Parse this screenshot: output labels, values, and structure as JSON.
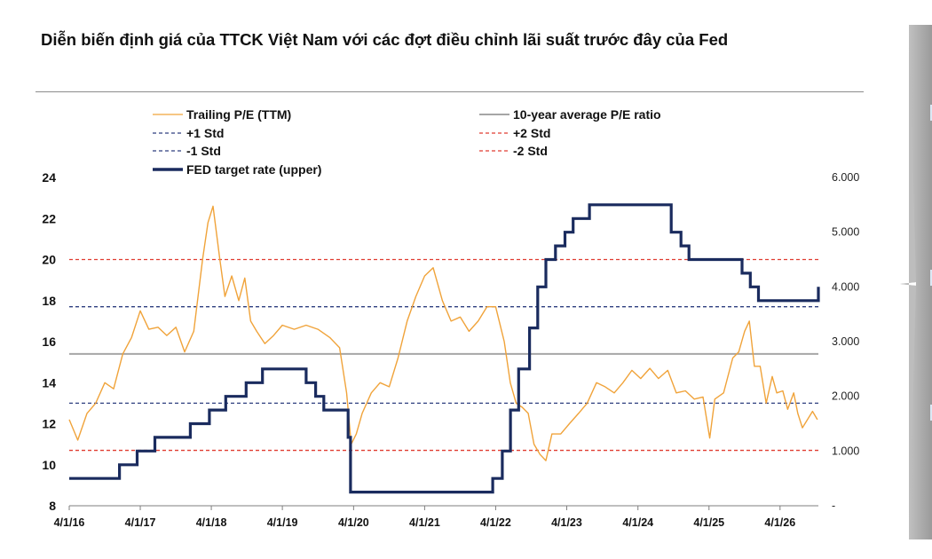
{
  "title": "Diễn biến định giá của TTCK Việt Nam với các đợt điều chỉnh lãi suất trước đây của Fed",
  "chart_data": {
    "type": "line",
    "title": "Diễn biến định giá của TTCK Việt Nam với các đợt điều chỉnh lãi suất trước đây của Fed",
    "x_tick_labels": [
      "4/1/16",
      "4/1/17",
      "4/1/18",
      "4/1/19",
      "4/1/20",
      "4/1/21",
      "4/1/22",
      "4/1/23",
      "4/1/24",
      "4/1/25",
      "4/1/26"
    ],
    "x_range": [
      "2016-04-01",
      "2026-10-15"
    ],
    "y_left": {
      "ticks": [
        "8",
        "10",
        "12",
        "14",
        "16",
        "18",
        "20",
        "22",
        "24"
      ],
      "range": [
        8,
        24
      ]
    },
    "y_right": {
      "ticks": [
        "-",
        "1.000",
        "2.000",
        "3.000",
        "4.000",
        "5.000",
        "6.000"
      ],
      "range": [
        0,
        6
      ]
    },
    "grid": false,
    "legend_position": "top",
    "legend": [
      {
        "label": "Trailing P/E (TTM)",
        "style": "solid-thin",
        "color": "#f0a33a"
      },
      {
        "label": "10-year average P/E ratio",
        "style": "solid",
        "color": "#a6a6a6"
      },
      {
        "label": "+1 Std",
        "style": "dashed",
        "color": "#2e3f7f"
      },
      {
        "label": "+2 Std",
        "style": "dashed",
        "color": "#e03c31"
      },
      {
        "label": "-1 Std",
        "style": "dashed",
        "color": "#2e3f7f"
      },
      {
        "label": "-2 Std",
        "style": "dashed",
        "color": "#e03c31"
      },
      {
        "label": "FED target rate (upper)",
        "style": "solid-thick",
        "color": "#1a2b5e"
      }
    ],
    "reference_lines": {
      "avg": 15.4,
      "plus1": 17.7,
      "minus1": 13.0,
      "plus2": 20.0,
      "minus2": 10.7
    },
    "series": [
      {
        "name": "Trailing P/E (TTM)",
        "axis": "left",
        "color": "#f0a33a",
        "points": [
          [
            "2016-04-01",
            12.2
          ],
          [
            "2016-05-15",
            11.2
          ],
          [
            "2016-07-01",
            12.5
          ],
          [
            "2016-08-15",
            13.0
          ],
          [
            "2016-10-01",
            14.0
          ],
          [
            "2016-11-15",
            13.7
          ],
          [
            "2017-01-01",
            15.4
          ],
          [
            "2017-02-15",
            16.2
          ],
          [
            "2017-04-01",
            17.5
          ],
          [
            "2017-05-15",
            16.6
          ],
          [
            "2017-07-01",
            16.7
          ],
          [
            "2017-08-15",
            16.3
          ],
          [
            "2017-10-01",
            16.7
          ],
          [
            "2017-11-15",
            15.5
          ],
          [
            "2018-01-01",
            16.5
          ],
          [
            "2018-02-15",
            20.0
          ],
          [
            "2018-03-15",
            21.8
          ],
          [
            "2018-04-10",
            22.6
          ],
          [
            "2018-05-15",
            20.0
          ],
          [
            "2018-06-10",
            18.2
          ],
          [
            "2018-07-15",
            19.2
          ],
          [
            "2018-08-20",
            18.0
          ],
          [
            "2018-09-20",
            19.1
          ],
          [
            "2018-10-20",
            17.0
          ],
          [
            "2018-11-20",
            16.5
          ],
          [
            "2019-01-01",
            15.9
          ],
          [
            "2019-02-15",
            16.3
          ],
          [
            "2019-04-01",
            16.8
          ],
          [
            "2019-06-01",
            16.6
          ],
          [
            "2019-08-01",
            16.8
          ],
          [
            "2019-10-01",
            16.6
          ],
          [
            "2019-12-01",
            16.2
          ],
          [
            "2020-01-20",
            15.7
          ],
          [
            "2020-02-25",
            13.5
          ],
          [
            "2020-03-20",
            11.0
          ],
          [
            "2020-04-15",
            11.5
          ],
          [
            "2020-05-15",
            12.5
          ],
          [
            "2020-07-01",
            13.5
          ],
          [
            "2020-08-15",
            14.0
          ],
          [
            "2020-10-01",
            13.8
          ],
          [
            "2020-11-15",
            15.2
          ],
          [
            "2021-01-01",
            17.0
          ],
          [
            "2021-02-15",
            18.2
          ],
          [
            "2021-04-01",
            19.2
          ],
          [
            "2021-05-15",
            19.6
          ],
          [
            "2021-07-01",
            18.0
          ],
          [
            "2021-08-15",
            17.0
          ],
          [
            "2021-10-01",
            17.2
          ],
          [
            "2021-11-15",
            16.5
          ],
          [
            "2022-01-01",
            17.0
          ],
          [
            "2022-02-15",
            17.7
          ],
          [
            "2022-04-01",
            17.7
          ],
          [
            "2022-05-15",
            16.0
          ],
          [
            "2022-06-15",
            14.0
          ],
          [
            "2022-07-15",
            13.0
          ],
          [
            "2022-08-15",
            12.8
          ],
          [
            "2022-09-15",
            12.5
          ],
          [
            "2022-10-15",
            11.0
          ],
          [
            "2022-11-15",
            10.5
          ],
          [
            "2022-12-15",
            10.2
          ],
          [
            "2023-01-15",
            11.5
          ],
          [
            "2023-03-01",
            11.5
          ],
          [
            "2023-04-15",
            12.0
          ],
          [
            "2023-06-01",
            12.5
          ],
          [
            "2023-07-15",
            13.0
          ],
          [
            "2023-09-01",
            14.0
          ],
          [
            "2023-10-15",
            13.8
          ],
          [
            "2023-12-01",
            13.5
          ],
          [
            "2024-01-15",
            14.0
          ],
          [
            "2024-03-01",
            14.6
          ],
          [
            "2024-04-15",
            14.2
          ],
          [
            "2024-06-01",
            14.7
          ],
          [
            "2024-07-15",
            14.2
          ],
          [
            "2024-09-01",
            14.6
          ],
          [
            "2024-10-15",
            13.5
          ],
          [
            "2024-12-01",
            13.6
          ],
          [
            "2025-01-15",
            13.2
          ],
          [
            "2025-03-01",
            13.3
          ],
          [
            "2025-04-05",
            11.3
          ],
          [
            "2025-05-01",
            13.2
          ],
          [
            "2025-06-15",
            13.5
          ],
          [
            "2025-08-01",
            15.2
          ],
          [
            "2025-09-01",
            15.5
          ],
          [
            "2025-10-01",
            16.5
          ],
          [
            "2025-10-25",
            17.0
          ],
          [
            "2025-11-20",
            14.8
          ],
          [
            "2025-12-20",
            14.8
          ],
          [
            "2026-01-20",
            13.0
          ],
          [
            "2026-02-20",
            14.3
          ],
          [
            "2026-03-15",
            13.5
          ],
          [
            "2026-04-15",
            13.6
          ],
          [
            "2026-05-10",
            12.7
          ],
          [
            "2026-06-10",
            13.5
          ],
          [
            "2026-07-01",
            12.5
          ],
          [
            "2026-07-25",
            11.8
          ],
          [
            "2026-08-20",
            12.2
          ],
          [
            "2026-09-15",
            12.6
          ],
          [
            "2026-10-10",
            12.2
          ]
        ]
      },
      {
        "name": "FED target rate (upper)",
        "axis": "right",
        "color": "#1a2b5e",
        "steps": [
          [
            "2016-04-01",
            0.5
          ],
          [
            "2016-12-15",
            0.75
          ],
          [
            "2017-03-16",
            1.0
          ],
          [
            "2017-06-15",
            1.25
          ],
          [
            "2017-12-14",
            1.5
          ],
          [
            "2018-03-22",
            1.75
          ],
          [
            "2018-06-14",
            2.0
          ],
          [
            "2018-09-27",
            2.25
          ],
          [
            "2018-12-20",
            2.5
          ],
          [
            "2019-08-01",
            2.25
          ],
          [
            "2019-09-19",
            2.0
          ],
          [
            "2019-10-31",
            1.75
          ],
          [
            "2020-03-04",
            1.25
          ],
          [
            "2020-03-16",
            0.25
          ],
          [
            "2022-03-17",
            0.5
          ],
          [
            "2022-05-05",
            1.0
          ],
          [
            "2022-06-16",
            1.75
          ],
          [
            "2022-07-28",
            2.5
          ],
          [
            "2022-09-22",
            3.25
          ],
          [
            "2022-11-03",
            4.0
          ],
          [
            "2022-12-15",
            4.5
          ],
          [
            "2023-02-02",
            4.75
          ],
          [
            "2023-03-23",
            5.0
          ],
          [
            "2023-05-04",
            5.25
          ],
          [
            "2023-07-27",
            5.5
          ],
          [
            "2024-09-19",
            5.0
          ],
          [
            "2024-11-08",
            4.75
          ],
          [
            "2024-12-19",
            4.5
          ],
          [
            "2025-09-18",
            4.25
          ],
          [
            "2025-10-30",
            4.0
          ],
          [
            "2025-12-11",
            3.75
          ],
          [
            "2026-10-01",
            3.75
          ],
          [
            "2026-10-15",
            4.0
          ]
        ]
      }
    ]
  }
}
